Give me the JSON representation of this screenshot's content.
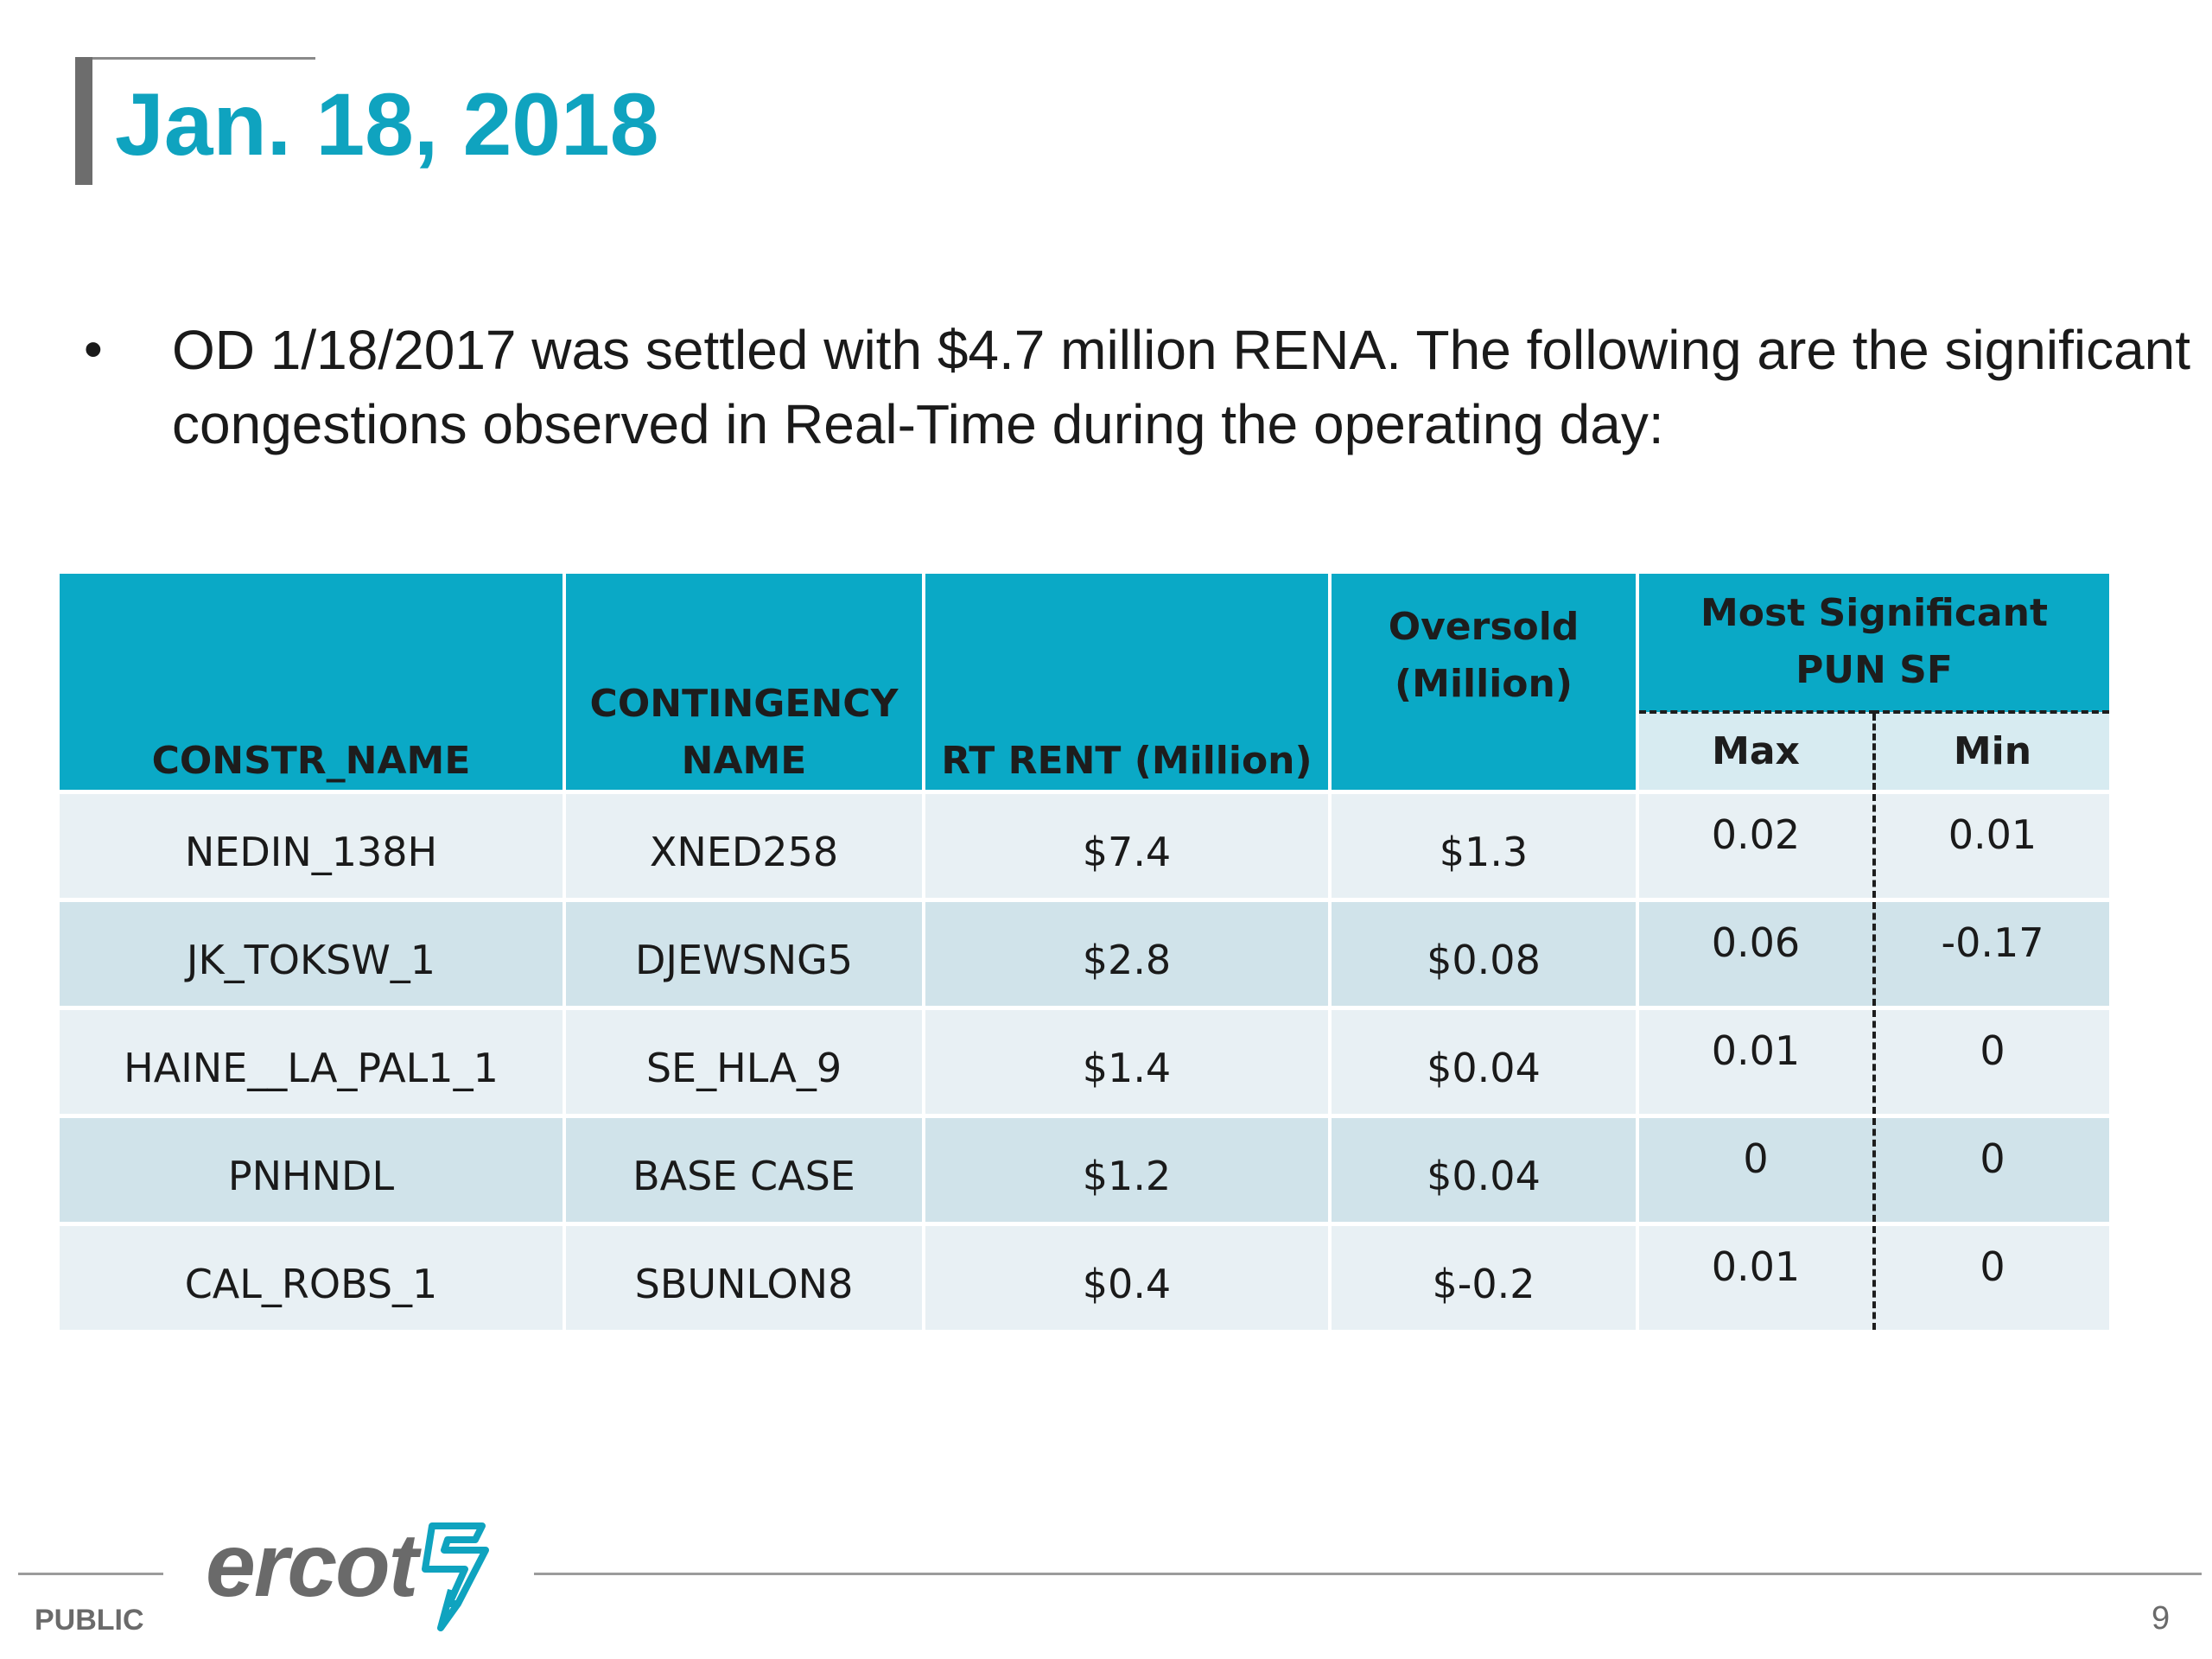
{
  "slide": {
    "title": "Jan. 18, 2018",
    "bullet": "OD 1/18/2017 was settled with $4.7 million RENA. The following are the significant congestions observed in Real-Time during the operating day:",
    "page_number": "9",
    "classification": "PUBLIC",
    "logo_text": "ercot",
    "logo_icon": "ercot-bolt-icon",
    "accent_color": "#0fa3bf",
    "header_color": "#0aa9c6"
  },
  "table": {
    "headers": {
      "constr_name": "CONSTR_NAME",
      "contingency_line1": "CONTINGENCY",
      "contingency_line2": "NAME",
      "rt_rent": "RT RENT (Million)",
      "oversold_line1": "Oversold",
      "oversold_line2": "(Million)",
      "pun_line1": "Most Significant",
      "pun_line2": "PUN SF",
      "max": "Max",
      "min": "Min"
    },
    "rows": [
      {
        "constr_name": "NEDIN_138H",
        "contingency": "XNED258",
        "rt_rent": "$7.4",
        "oversold": "$1.3",
        "max": "0.02",
        "min": "0.01"
      },
      {
        "constr_name": "JK_TOKSW_1",
        "contingency": "DJEWSNG5",
        "rt_rent": "$2.8",
        "oversold": "$0.08",
        "max": "0.06",
        "min": "-0.17"
      },
      {
        "constr_name": "HAINE__LA_PAL1_1",
        "contingency": "SE_HLA_9",
        "rt_rent": "$1.4",
        "oversold": "$0.04",
        "max": "0.01",
        "min": "0"
      },
      {
        "constr_name": "PNHNDL",
        "contingency": "BASE CASE",
        "rt_rent": "$1.2",
        "oversold": "$0.04",
        "max": "0",
        "min": "0"
      },
      {
        "constr_name": "CAL_ROBS_1",
        "contingency": "SBUNLON8",
        "rt_rent": "$0.4",
        "oversold": "$-0.2",
        "max": "0.01",
        "min": "0"
      }
    ]
  }
}
